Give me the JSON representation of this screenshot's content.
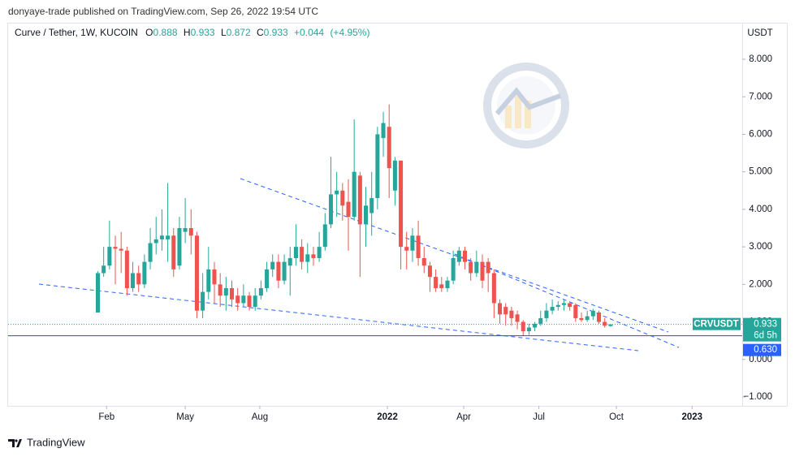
{
  "published": "donyaye-trade published on TradingView.com, Sep 26, 2022 19:54 UTC",
  "footer": {
    "brand": "TradingView"
  },
  "chart_data": {
    "type": "candlestick",
    "legend": {
      "symbol": "Curve / Tether, 1W, KUCOIN",
      "open_label": "O",
      "high_label": "H",
      "low_label": "L",
      "close_label": "C",
      "change": "+0.044",
      "change_pct": "(+4.95%)"
    },
    "y_axis_label": "USDT",
    "symbol_tag": "CRVUSDT",
    "countdown": "6d 5h",
    "price_line": {
      "value": 0.63,
      "label": "0.630"
    },
    "up_color": "#26a69a",
    "down_color": "#ef5350",
    "grid": false,
    "x": [
      0,
      1,
      2,
      3,
      4,
      5,
      6,
      7,
      8,
      9,
      10,
      11,
      12,
      13,
      14,
      15,
      16,
      17,
      18,
      19,
      20,
      21,
      22,
      23,
      24,
      25,
      26,
      27,
      28,
      29,
      30,
      31,
      32,
      33,
      34,
      35,
      36,
      37,
      38,
      39,
      40,
      41,
      42,
      43,
      44,
      45,
      46,
      47,
      48,
      49,
      50,
      51,
      52,
      53,
      54,
      55,
      56,
      57,
      58,
      59,
      60,
      61,
      62,
      63,
      64,
      65,
      66,
      67,
      68,
      69,
      70,
      71,
      72,
      73,
      74,
      75,
      76,
      77,
      78,
      79,
      80,
      81,
      82,
      83,
      84,
      85,
      86,
      87,
      88
    ],
    "open": [
      1.25,
      2.3,
      2.5,
      3.0,
      2.95,
      2.9,
      1.9,
      2.3,
      2.0,
      2.6,
      3.1,
      3.2,
      3.2,
      3.3,
      2.5,
      3.4,
      3.5,
      3.3,
      1.3,
      1.8,
      2.4,
      2.0,
      1.7,
      1.9,
      1.7,
      1.5,
      1.7,
      1.4,
      1.7,
      1.9,
      2.4,
      2.6,
      2.1,
      2.5,
      2.7,
      3.0,
      2.6,
      2.8,
      2.7,
      3.0,
      3.6,
      4.4,
      4.5,
      4.2,
      3.8,
      4.9,
      3.6,
      3.9,
      4.3,
      5.9,
      6.2,
      4.5,
      5.3,
      3.0,
      2.9,
      3.3,
      2.7,
      2.5,
      2.2,
      2.0,
      1.9,
      2.1,
      2.6,
      2.9,
      2.6,
      2.3,
      2.6,
      2.6,
      2.3,
      1.5,
      1.4,
      1.3,
      1.2,
      1.0,
      0.75,
      0.85,
      0.95,
      1.1,
      1.3,
      1.4,
      1.45,
      1.5,
      1.45,
      1.1,
      1.05,
      1.15,
      1.25,
      1.0,
      0.888
    ],
    "high": [
      2.35,
      3.0,
      3.7,
      3.3,
      3.4,
      3.0,
      2.6,
      2.5,
      2.8,
      3.5,
      3.8,
      4.0,
      4.7,
      3.5,
      3.8,
      4.3,
      4.0,
      3.4,
      2.3,
      3.0,
      2.6,
      2.3,
      2.2,
      2.1,
      1.9,
      2.0,
      1.8,
      1.9,
      2.1,
      2.6,
      2.8,
      2.8,
      2.8,
      3.0,
      3.6,
      3.2,
      3.1,
      3.0,
      3.4,
      3.9,
      5.4,
      5.0,
      4.7,
      4.8,
      6.4,
      5.0,
      4.6,
      5.0,
      6.2,
      6.6,
      6.8,
      5.4,
      5.3,
      3.4,
      3.5,
      3.7,
      3.0,
      2.6,
      2.4,
      2.2,
      2.2,
      2.9,
      3.0,
      3.0,
      2.7,
      2.9,
      2.8,
      2.7,
      2.4,
      1.6,
      1.5,
      1.4,
      1.3,
      1.05,
      0.95,
      1.0,
      1.3,
      1.5,
      1.6,
      1.55,
      1.6,
      1.55,
      1.5,
      1.25,
      1.3,
      1.35,
      1.3,
      1.1,
      0.933
    ],
    "low": [
      1.25,
      2.2,
      2.4,
      2.0,
      2.3,
      1.7,
      1.8,
      1.8,
      1.9,
      2.4,
      2.8,
      2.9,
      2.6,
      2.2,
      2.4,
      3.1,
      2.8,
      1.1,
      1.1,
      1.6,
      1.5,
      1.4,
      1.3,
      1.4,
      1.3,
      1.4,
      1.3,
      1.3,
      1.6,
      1.8,
      2.2,
      1.9,
      2.0,
      1.7,
      2.5,
      2.4,
      2.3,
      2.5,
      2.6,
      2.9,
      3.5,
      3.8,
      3.7,
      2.9,
      3.7,
      2.2,
      3.0,
      3.3,
      4.0,
      5.4,
      4.3,
      4.1,
      2.4,
      2.4,
      2.6,
      2.5,
      2.3,
      1.8,
      1.8,
      1.8,
      1.8,
      2.0,
      2.5,
      2.4,
      2.1,
      2.2,
      1.9,
      1.8,
      1.1,
      0.95,
      0.9,
      0.9,
      0.8,
      0.63,
      0.65,
      0.75,
      0.9,
      1.0,
      1.2,
      1.3,
      1.3,
      1.3,
      1.0,
      1.0,
      1.0,
      1.05,
      0.95,
      0.85,
      0.872
    ],
    "close": [
      2.3,
      2.5,
      3.0,
      2.95,
      2.9,
      1.9,
      2.3,
      2.0,
      2.6,
      3.1,
      3.2,
      3.3,
      3.3,
      2.4,
      3.5,
      3.5,
      3.3,
      1.3,
      1.8,
      2.4,
      2.0,
      1.7,
      1.9,
      1.6,
      1.5,
      1.7,
      1.4,
      1.7,
      1.9,
      2.4,
      2.6,
      2.1,
      2.6,
      2.7,
      3.0,
      2.6,
      2.8,
      2.7,
      3.0,
      3.6,
      4.4,
      4.5,
      4.1,
      3.8,
      5.0,
      3.6,
      4.1,
      4.3,
      6.0,
      6.3,
      5.1,
      5.3,
      3.0,
      2.9,
      3.3,
      2.7,
      2.5,
      2.2,
      1.9,
      1.9,
      2.1,
      2.7,
      2.9,
      2.6,
      2.3,
      2.6,
      2.1,
      2.3,
      1.5,
      1.2,
      1.2,
      1.1,
      1.0,
      0.75,
      0.85,
      0.95,
      1.1,
      1.3,
      1.4,
      1.45,
      1.5,
      1.4,
      1.1,
      1.05,
      1.15,
      1.3,
      1.0,
      0.9,
      0.933
    ],
    "xlim": [
      -15.4,
      110.6
    ],
    "xticks": [
      {
        "value": 1.5,
        "label": "Feb"
      },
      {
        "value": 15,
        "label": "May"
      },
      {
        "value": 27.8,
        "label": "Aug"
      },
      {
        "value": 49.7,
        "label": "2022"
      },
      {
        "value": 62.8,
        "label": "Apr"
      },
      {
        "value": 75.7,
        "label": "Jul"
      },
      {
        "value": 89,
        "label": "Oct"
      },
      {
        "value": 102,
        "label": "2023"
      }
    ],
    "ylim": [
      -1.238,
      8.974
    ],
    "yticks": [
      {
        "value": -1,
        "label": "−1.000"
      },
      {
        "value": 0,
        "label": "0.000"
      },
      {
        "value": 1,
        "label": "1.000"
      },
      {
        "value": 2,
        "label": "2.000"
      },
      {
        "value": 3,
        "label": "3.000"
      },
      {
        "value": 4,
        "label": "4.000"
      },
      {
        "value": 5,
        "label": "5.000"
      },
      {
        "value": 6,
        "label": "6.000"
      },
      {
        "value": 7,
        "label": "7.000"
      },
      {
        "value": 8,
        "label": "8.000"
      }
    ]
  }
}
